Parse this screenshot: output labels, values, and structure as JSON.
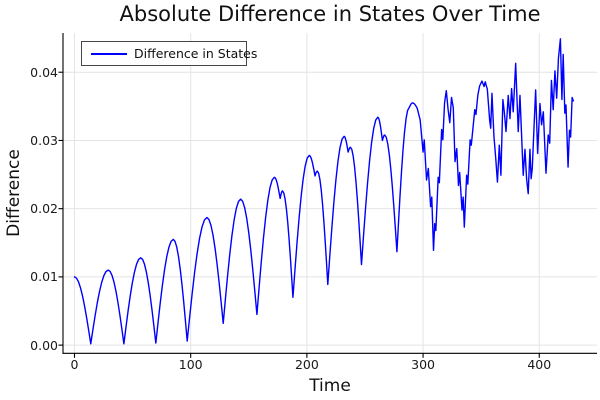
{
  "chart_data": {
    "type": "line",
    "title": "Absolute Difference in States Over Time",
    "xlabel": "Time",
    "ylabel": "Difference",
    "grid": true,
    "legend_position": "top-left",
    "background": "#ffffff",
    "grid_color": "#e4e4e4",
    "spine_color": "#000000",
    "xlim": [
      -9.9,
      449.7
    ],
    "ylim": [
      -0.0012,
      0.04575
    ],
    "x_ticks": [
      0,
      100,
      200,
      300,
      400
    ],
    "y_ticks": [
      0,
      0.01,
      0.02,
      0.03,
      0.04
    ],
    "y_tick_labels": [
      "0.00",
      "0.01",
      "0.02",
      "0.03",
      "0.04"
    ],
    "x_tick_labels": [
      "0",
      "100",
      "200",
      "300",
      "400"
    ],
    "smooth_until": 296,
    "series": [
      {
        "name": "Difference in States",
        "color": "#0000ff",
        "line_width": 1.4,
        "points": [
          [
            0,
            0.01
          ],
          [
            14,
            0.0002
          ],
          [
            29,
            0.011
          ],
          [
            42.5,
            0.0002
          ],
          [
            57,
            0.0128
          ],
          [
            70,
            0.0003
          ],
          [
            85,
            0.0155
          ],
          [
            97,
            0.0006
          ],
          [
            114,
            0.0187
          ],
          [
            128,
            0.0032
          ],
          [
            143,
            0.0214
          ],
          [
            157,
            0.0045
          ],
          [
            172,
            0.0246
          ],
          [
            177,
            0.0215
          ],
          [
            179,
            0.0226
          ],
          [
            188,
            0.007
          ],
          [
            202,
            0.0278
          ],
          [
            207,
            0.0248
          ],
          [
            209,
            0.0255
          ],
          [
            218,
            0.0089
          ],
          [
            232,
            0.0306
          ],
          [
            235.5,
            0.0283
          ],
          [
            237.5,
            0.029
          ],
          [
            247,
            0.0118
          ],
          [
            261,
            0.0334
          ],
          [
            265,
            0.03
          ],
          [
            267,
            0.0308
          ],
          [
            277.5,
            0.0137
          ],
          [
            288,
            0.0348
          ],
          [
            291,
            0.0355
          ],
          [
            295,
            0.0347
          ],
          [
            297.5,
            0.033
          ],
          [
            300,
            0.0283
          ],
          [
            301,
            0.0301
          ],
          [
            303,
            0.0242
          ],
          [
            304.5,
            0.0259
          ],
          [
            306.5,
            0.0203
          ],
          [
            307.5,
            0.0217
          ],
          [
            309,
            0.0139
          ],
          [
            310,
            0.0178
          ],
          [
            311,
            0.0168
          ],
          [
            313,
            0.0246
          ],
          [
            314,
            0.0238
          ],
          [
            316,
            0.0316
          ],
          [
            317,
            0.0301
          ],
          [
            318.5,
            0.0355
          ],
          [
            320,
            0.0373
          ],
          [
            321.5,
            0.0346
          ],
          [
            323,
            0.0326
          ],
          [
            324.5,
            0.0363
          ],
          [
            326,
            0.0348
          ],
          [
            327.5,
            0.0269
          ],
          [
            329,
            0.0288
          ],
          [
            330.5,
            0.0234
          ],
          [
            331.5,
            0.0253
          ],
          [
            333.5,
            0.0198
          ],
          [
            334.5,
            0.0217
          ],
          [
            335.5,
            0.0173
          ],
          [
            337.5,
            0.0249
          ],
          [
            338.5,
            0.0236
          ],
          [
            340.5,
            0.0301
          ],
          [
            341.5,
            0.0293
          ],
          [
            344.5,
            0.0345
          ],
          [
            345.5,
            0.0338
          ],
          [
            347.2,
            0.0367
          ],
          [
            348.7,
            0.038
          ],
          [
            350.7,
            0.0387
          ],
          [
            352.5,
            0.0379
          ],
          [
            353.5,
            0.0386
          ],
          [
            355.3,
            0.0375
          ],
          [
            357.3,
            0.033
          ],
          [
            358.2,
            0.0318
          ],
          [
            359.3,
            0.0369
          ],
          [
            361.0,
            0.0306
          ],
          [
            362.5,
            0.0275
          ],
          [
            364.0,
            0.0239
          ],
          [
            365.6,
            0.0293
          ],
          [
            367.0,
            0.0249
          ],
          [
            368.7,
            0.036
          ],
          [
            369.9,
            0.0342
          ],
          [
            371.4,
            0.0313
          ],
          [
            373.3,
            0.0366
          ],
          [
            374.8,
            0.0332
          ],
          [
            376.2,
            0.0376
          ],
          [
            377.6,
            0.0342
          ],
          [
            379.7,
            0.0413
          ],
          [
            381.9,
            0.0313
          ],
          [
            383.4,
            0.0366
          ],
          [
            386.2,
            0.0249
          ],
          [
            387.7,
            0.0287
          ],
          [
            389.1,
            0.0244
          ],
          [
            390.5,
            0.0222
          ],
          [
            392.0,
            0.0287
          ],
          [
            393.0,
            0.0244
          ],
          [
            394.0,
            0.0259
          ],
          [
            395.5,
            0.032
          ],
          [
            396.9,
            0.0374
          ],
          [
            398.6,
            0.0281
          ],
          [
            400.6,
            0.0354
          ],
          [
            402.0,
            0.0323
          ],
          [
            403.5,
            0.0342
          ],
          [
            405.8,
            0.0252
          ],
          [
            407.7,
            0.0308
          ],
          [
            409.0,
            0.0296
          ],
          [
            410.5,
            0.0388
          ],
          [
            412.0,
            0.0345
          ],
          [
            413.5,
            0.0402
          ],
          [
            415.0,
            0.0362
          ],
          [
            416.5,
            0.042
          ],
          [
            418.2,
            0.0449
          ],
          [
            419.5,
            0.036
          ],
          [
            420.6,
            0.0426
          ],
          [
            422.0,
            0.034
          ],
          [
            423.0,
            0.0352
          ],
          [
            424.8,
            0.0261
          ],
          [
            426.0,
            0.0315
          ],
          [
            427.0,
            0.0305
          ],
          [
            428.3,
            0.0363
          ],
          [
            429.3,
            0.0358
          ]
        ]
      }
    ]
  }
}
